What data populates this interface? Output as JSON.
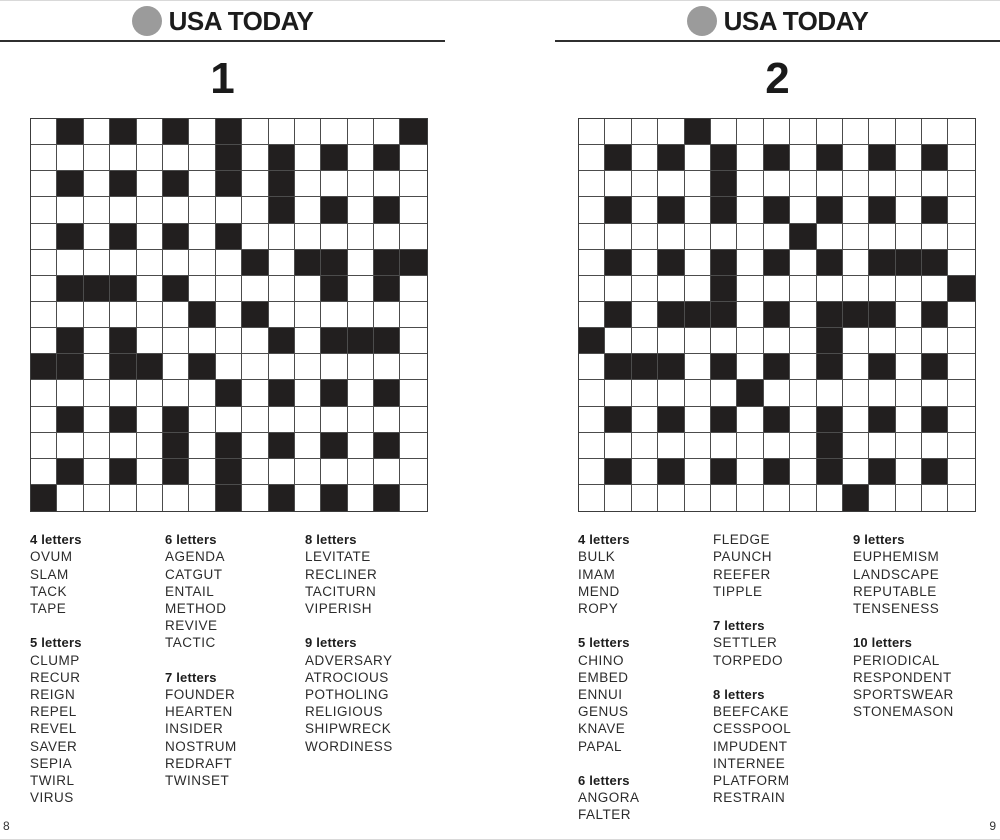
{
  "pages": [
    {
      "brand": "USA TODAY",
      "number": "1",
      "folio": "8",
      "grid": [
        ".#.#.#.#......#",
        ".......#.#.#.#.",
        ".#.#.#.#.#.....",
        ".........#.#.#.",
        ".#.#.#.#.......",
        "........#.##.##",
        ".###.#.....#.#.",
        "......#.#......",
        ".#.#.....#.###.",
        "##.##.#........",
        ".......#.#.#.#.",
        ".#.#.#.........",
        ".....#.#.#.#.#.",
        ".#.#.#.#.......",
        "#......#.#.#.#."
      ],
      "word_columns": [
        [
          {
            "k": "h",
            "t": "4 letters"
          },
          {
            "k": "w",
            "t": "OVUM"
          },
          {
            "k": "w",
            "t": "SLAM"
          },
          {
            "k": "w",
            "t": "TACK"
          },
          {
            "k": "w",
            "t": "TAPE"
          },
          {
            "k": "g"
          },
          {
            "k": "h",
            "t": "5 letters"
          },
          {
            "k": "w",
            "t": "CLUMP"
          },
          {
            "k": "w",
            "t": "RECUR"
          },
          {
            "k": "w",
            "t": "REIGN"
          },
          {
            "k": "w",
            "t": "REPEL"
          },
          {
            "k": "w",
            "t": "REVEL"
          },
          {
            "k": "w",
            "t": "SAVER"
          },
          {
            "k": "w",
            "t": "SEPIA"
          },
          {
            "k": "w",
            "t": "TWIRL"
          },
          {
            "k": "w",
            "t": "VIRUS"
          }
        ],
        [
          {
            "k": "h",
            "t": "6 letters"
          },
          {
            "k": "w",
            "t": "AGENDA"
          },
          {
            "k": "w",
            "t": "CATGUT"
          },
          {
            "k": "w",
            "t": "ENTAIL"
          },
          {
            "k": "w",
            "t": "METHOD"
          },
          {
            "k": "w",
            "t": "REVIVE"
          },
          {
            "k": "w",
            "t": "TACTIC"
          },
          {
            "k": "g"
          },
          {
            "k": "h",
            "t": "7 letters"
          },
          {
            "k": "w",
            "t": "FOUNDER"
          },
          {
            "k": "w",
            "t": "HEARTEN"
          },
          {
            "k": "w",
            "t": "INSIDER"
          },
          {
            "k": "w",
            "t": "NOSTRUM"
          },
          {
            "k": "w",
            "t": "REDRAFT"
          },
          {
            "k": "w",
            "t": "TWINSET"
          }
        ],
        [
          {
            "k": "h",
            "t": "8 letters"
          },
          {
            "k": "w",
            "t": "LEVITATE"
          },
          {
            "k": "w",
            "t": "RECLINER"
          },
          {
            "k": "w",
            "t": "TACITURN"
          },
          {
            "k": "w",
            "t": "VIPERISH"
          },
          {
            "k": "g"
          },
          {
            "k": "h",
            "t": "9 letters"
          },
          {
            "k": "w",
            "t": "ADVERSARY"
          },
          {
            "k": "w",
            "t": "ATROCIOUS"
          },
          {
            "k": "w",
            "t": "POTHOLING"
          },
          {
            "k": "w",
            "t": "RELIGIOUS"
          },
          {
            "k": "w",
            "t": "SHIPWRECK"
          },
          {
            "k": "w",
            "t": "WORDINESS"
          }
        ]
      ]
    },
    {
      "brand": "USA TODAY",
      "number": "2",
      "folio": "9",
      "grid": [
        "....#..........",
        ".#.#.#.#.#.#.#.",
        ".....#.........",
        ".#.#.#.#.#.#.#.",
        "........#......",
        ".#.#.#.#.#.###.",
        ".....#........#",
        ".#.###.#.###.#.",
        "#........#.....",
        ".###.#.#.#.#.#.",
        "......#........",
        ".#.#.#.#.#.#.#.",
        ".........#.....",
        ".#.#.#.#.#.#.#.",
        "..........#...."
      ],
      "word_columns": [
        [
          {
            "k": "h",
            "t": "4 letters"
          },
          {
            "k": "w",
            "t": "BULK"
          },
          {
            "k": "w",
            "t": "IMAM"
          },
          {
            "k": "w",
            "t": "MEND"
          },
          {
            "k": "w",
            "t": "ROPY"
          },
          {
            "k": "g"
          },
          {
            "k": "h",
            "t": "5 letters"
          },
          {
            "k": "w",
            "t": "CHINO"
          },
          {
            "k": "w",
            "t": "EMBED"
          },
          {
            "k": "w",
            "t": "ENNUI"
          },
          {
            "k": "w",
            "t": "GENUS"
          },
          {
            "k": "w",
            "t": "KNAVE"
          },
          {
            "k": "w",
            "t": "PAPAL"
          },
          {
            "k": "g"
          },
          {
            "k": "h",
            "t": "6 letters"
          },
          {
            "k": "w",
            "t": "ANGORA"
          },
          {
            "k": "w",
            "t": "FALTER"
          }
        ],
        [
          {
            "k": "w",
            "t": "FLEDGE"
          },
          {
            "k": "w",
            "t": "PAUNCH"
          },
          {
            "k": "w",
            "t": "REEFER"
          },
          {
            "k": "w",
            "t": "TIPPLE"
          },
          {
            "k": "g"
          },
          {
            "k": "h",
            "t": "7 letters"
          },
          {
            "k": "w",
            "t": "SETTLER"
          },
          {
            "k": "w",
            "t": "TORPEDO"
          },
          {
            "k": "g"
          },
          {
            "k": "h",
            "t": "8 letters"
          },
          {
            "k": "w",
            "t": "BEEFCAKE"
          },
          {
            "k": "w",
            "t": "CESSPOOL"
          },
          {
            "k": "w",
            "t": "IMPUDENT"
          },
          {
            "k": "w",
            "t": "INTERNEE"
          },
          {
            "k": "w",
            "t": "PLATFORM"
          },
          {
            "k": "w",
            "t": "RESTRAIN"
          }
        ],
        [
          {
            "k": "h",
            "t": "9 letters"
          },
          {
            "k": "w",
            "t": "EUPHEMISM"
          },
          {
            "k": "w",
            "t": "LANDSCAPE"
          },
          {
            "k": "w",
            "t": "REPUTABLE"
          },
          {
            "k": "w",
            "t": "TENSENESS"
          },
          {
            "k": "g"
          },
          {
            "k": "h",
            "t": "10 letters"
          },
          {
            "k": "w",
            "t": "PERIODICAL"
          },
          {
            "k": "w",
            "t": "RESPONDENT"
          },
          {
            "k": "w",
            "t": "SPORTSWEAR"
          },
          {
            "k": "w",
            "t": "STONEMASON"
          }
        ]
      ]
    }
  ],
  "colors": {
    "black_cell": "#221f1f",
    "grid_line": "#4c4c4c",
    "brand_text": "#1c1c1c",
    "logo_circle": "#9b9b9b",
    "rule": "#2f2f2f"
  }
}
